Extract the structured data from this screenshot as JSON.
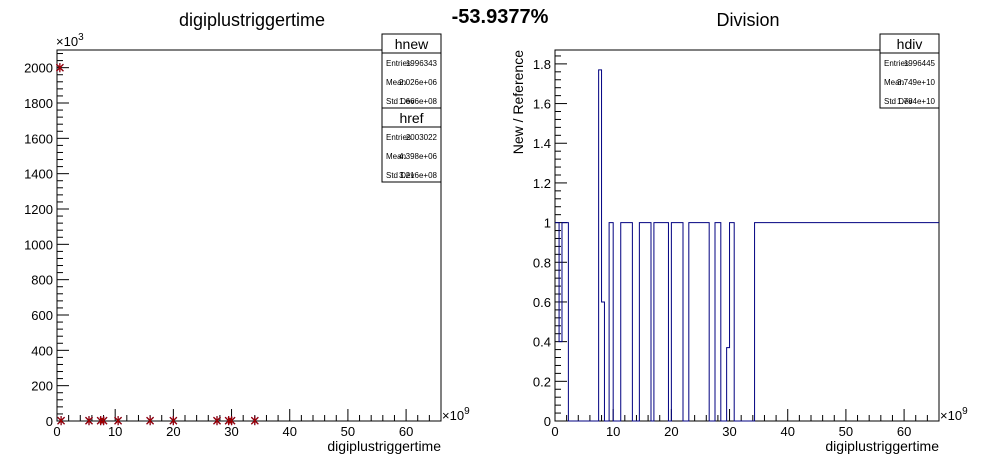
{
  "headline": "-53.9377%",
  "chart_data": [
    {
      "type": "scatter",
      "title": "digiplustriggertime",
      "xlabel": "digiplustriggertime",
      "ylabel": "",
      "x_exponent": "×10",
      "x_exponent_power": "9",
      "y_exponent": "×10",
      "y_exponent_power": "3",
      "xlim": [
        0,
        66
      ],
      "ylim": [
        0,
        2100
      ],
      "x_ticks": [
        "0",
        "10",
        "20",
        "30",
        "40",
        "50",
        "60"
      ],
      "y_ticks": [
        "0",
        "200",
        "400",
        "600",
        "800",
        "1000",
        "1200",
        "1400",
        "1600",
        "1800",
        "2000"
      ],
      "series": [
        {
          "name": "hnew",
          "color": "#000080",
          "x": [
            0.5,
            0.7,
            5.5,
            7.5,
            8.0,
            10.5,
            16.0,
            20.0,
            27.5,
            29.5,
            30.0,
            34.0
          ],
          "y": [
            2000,
            2,
            2,
            2,
            2,
            2,
            2,
            2,
            2,
            2,
            2,
            2
          ]
        },
        {
          "name": "href",
          "color": "#a00000",
          "x": [
            0.5,
            0.7,
            5.5,
            7.5,
            8.0,
            10.5,
            16.0,
            20.0,
            27.5,
            29.5,
            30.0,
            34.0
          ],
          "y": [
            2000,
            2,
            2,
            2,
            2,
            2,
            2,
            2,
            2,
            2,
            2,
            2
          ]
        }
      ],
      "stats": [
        {
          "title": "hnew",
          "rows": [
            {
              "label": "Entries",
              "value": "1996343"
            },
            {
              "label": "Mean",
              "value": "2.026e+06"
            },
            {
              "label": "Std Dev",
              "value": "1.666e+08"
            }
          ]
        },
        {
          "title": "href",
          "rows": [
            {
              "label": "Entries",
              "value": "2003022"
            },
            {
              "label": "Mean",
              "value": "4.398e+06"
            },
            {
              "label": "Std Dev",
              "value": "3.216e+08"
            }
          ]
        }
      ]
    },
    {
      "type": "line",
      "title": "Division",
      "xlabel": "digiplustriggertime",
      "ylabel": "New / Reference",
      "x_exponent": "×10",
      "x_exponent_power": "9",
      "xlim": [
        0,
        66
      ],
      "ylim": [
        0,
        1.87
      ],
      "x_ticks": [
        "0",
        "10",
        "20",
        "30",
        "40",
        "50",
        "60"
      ],
      "y_ticks": [
        "0",
        "0.2",
        "0.4",
        "0.6",
        "0.8",
        "1",
        "1.2",
        "1.4",
        "1.6",
        "1.8"
      ],
      "series": [
        {
          "name": "hdiv",
          "color": "#000080",
          "step_edges": [
            0,
            0.7,
            1.2,
            2.3,
            7.5,
            8.0,
            8.5,
            9.3,
            10.0,
            11.3,
            13.3,
            14.5,
            16.5,
            17.0,
            19.5,
            20.0,
            22.0,
            23.0,
            26.5,
            27.5,
            28.5,
            29.5,
            30.0,
            30.8,
            33.5,
            34.3,
            66
          ],
          "values": [
            1,
            0.4,
            1,
            0,
            1.77,
            0.6,
            0,
            1,
            0,
            1,
            0,
            1,
            0,
            1,
            0,
            1,
            0,
            1,
            0,
            1,
            0,
            0.37,
            1,
            0,
            0,
            1
          ]
        }
      ],
      "stats": [
        {
          "title": "hdiv",
          "rows": [
            {
              "label": "Entries",
              "value": "1996445"
            },
            {
              "label": "Mean",
              "value": "3.749e+10"
            },
            {
              "label": "Std Dev",
              "value": "1.784e+10"
            }
          ]
        }
      ]
    }
  ]
}
